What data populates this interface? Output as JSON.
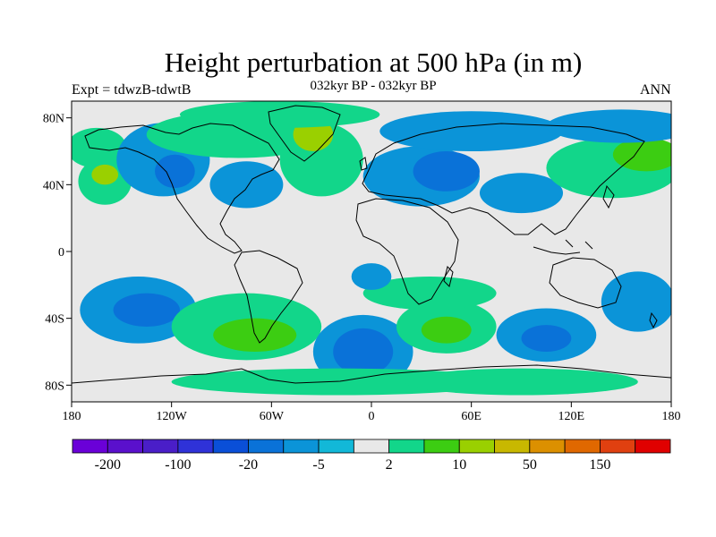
{
  "title": "Height perturbation at 500 hPa (in m)",
  "expt_label": "Expt = tdwzB-tdwtB",
  "subtitle": "032kyr BP - 032kyr BP",
  "season": "ANN",
  "map": {
    "projection": "cylindrical-equidistant",
    "lon_range": [
      -180,
      180
    ],
    "lat_range": [
      -90,
      90
    ],
    "lon_ticks": [
      {
        "value": -180,
        "label": "180"
      },
      {
        "value": -120,
        "label": "120W"
      },
      {
        "value": -60,
        "label": "60W"
      },
      {
        "value": 0,
        "label": "0"
      },
      {
        "value": 60,
        "label": "60E"
      },
      {
        "value": 120,
        "label": "120E"
      },
      {
        "value": 180,
        "label": "180"
      }
    ],
    "lat_ticks": [
      {
        "value": 80,
        "label": "80N"
      },
      {
        "value": 40,
        "label": "40N"
      },
      {
        "value": 0,
        "label": "0"
      },
      {
        "value": -40,
        "label": "40S"
      },
      {
        "value": -80,
        "label": "80S"
      }
    ],
    "background_color": "#e8e8e8",
    "regions": [
      {
        "lon": -165,
        "lat": 62,
        "rx": 18,
        "ry": 12,
        "level": 9
      },
      {
        "lon": -160,
        "lat": 42,
        "rx": 16,
        "ry": 14,
        "level": 9
      },
      {
        "lon": -160,
        "lat": 46,
        "rx": 8,
        "ry": 6,
        "level": 11
      },
      {
        "lon": -125,
        "lat": 55,
        "rx": 28,
        "ry": 22,
        "level": 6
      },
      {
        "lon": -118,
        "lat": 48,
        "rx": 12,
        "ry": 10,
        "level": 5
      },
      {
        "lon": -80,
        "lat": 70,
        "rx": 55,
        "ry": 14,
        "level": 9
      },
      {
        "lon": -75,
        "lat": 40,
        "rx": 22,
        "ry": 14,
        "level": 6
      },
      {
        "lon": -30,
        "lat": 55,
        "rx": 25,
        "ry": 22,
        "level": 9
      },
      {
        "lon": -35,
        "lat": 70,
        "rx": 12,
        "ry": 10,
        "level": 11
      },
      {
        "lon": -55,
        "lat": 82,
        "rx": 60,
        "ry": 8,
        "level": 9
      },
      {
        "lon": 30,
        "lat": 45,
        "rx": 35,
        "ry": 18,
        "level": 6
      },
      {
        "lon": 45,
        "lat": 48,
        "rx": 20,
        "ry": 12,
        "level": 5
      },
      {
        "lon": 60,
        "lat": 72,
        "rx": 55,
        "ry": 12,
        "level": 6
      },
      {
        "lon": 90,
        "lat": 35,
        "rx": 25,
        "ry": 12,
        "level": 6
      },
      {
        "lon": 145,
        "lat": 50,
        "rx": 40,
        "ry": 18,
        "level": 9
      },
      {
        "lon": 165,
        "lat": 58,
        "rx": 20,
        "ry": 10,
        "level": 10
      },
      {
        "lon": 150,
        "lat": 75,
        "rx": 45,
        "ry": 10,
        "level": 6
      },
      {
        "lon": -140,
        "lat": -35,
        "rx": 35,
        "ry": 20,
        "level": 6
      },
      {
        "lon": -135,
        "lat": -35,
        "rx": 20,
        "ry": 10,
        "level": 5
      },
      {
        "lon": -75,
        "lat": -45,
        "rx": 45,
        "ry": 20,
        "level": 9
      },
      {
        "lon": -70,
        "lat": -50,
        "rx": 25,
        "ry": 10,
        "level": 10
      },
      {
        "lon": -5,
        "lat": -60,
        "rx": 30,
        "ry": 22,
        "level": 6
      },
      {
        "lon": -5,
        "lat": -60,
        "rx": 18,
        "ry": 14,
        "level": 5
      },
      {
        "lon": 45,
        "lat": -45,
        "rx": 30,
        "ry": 16,
        "level": 9
      },
      {
        "lon": 45,
        "lat": -47,
        "rx": 15,
        "ry": 8,
        "level": 10
      },
      {
        "lon": 105,
        "lat": -50,
        "rx": 30,
        "ry": 16,
        "level": 6
      },
      {
        "lon": 105,
        "lat": -52,
        "rx": 15,
        "ry": 8,
        "level": 5
      },
      {
        "lon": 35,
        "lat": -25,
        "rx": 40,
        "ry": 10,
        "level": 9
      },
      {
        "lon": 160,
        "lat": -30,
        "rx": 22,
        "ry": 18,
        "level": 6
      },
      {
        "lon": -20,
        "lat": -78,
        "rx": 100,
        "ry": 8,
        "level": 9
      },
      {
        "lon": 90,
        "lat": -78,
        "rx": 70,
        "ry": 8,
        "level": 9
      },
      {
        "lon": 0,
        "lat": -15,
        "rx": 12,
        "ry": 8,
        "level": 6
      }
    ]
  },
  "colorbar": {
    "colors": [
      "#6a00d8",
      "#5a10cc",
      "#4a1ec8",
      "#2f32d8",
      "#0a4fd8",
      "#0a72d8",
      "#0b94d8",
      "#12b8d8",
      "#e8e8e8",
      "#12d68a",
      "#3ccd12",
      "#9ad000",
      "#c8b800",
      "#dc9000",
      "#e06800",
      "#e04010",
      "#e00000"
    ],
    "labels": [
      {
        "after_index": 0,
        "text": "-200"
      },
      {
        "after_index": 2,
        "text": "-100"
      },
      {
        "after_index": 4,
        "text": "-20"
      },
      {
        "after_index": 6,
        "text": "-5"
      },
      {
        "after_index": 8,
        "text": "2"
      },
      {
        "after_index": 10,
        "text": "10"
      },
      {
        "after_index": 12,
        "text": "50"
      },
      {
        "after_index": 14,
        "text": "150"
      }
    ]
  }
}
